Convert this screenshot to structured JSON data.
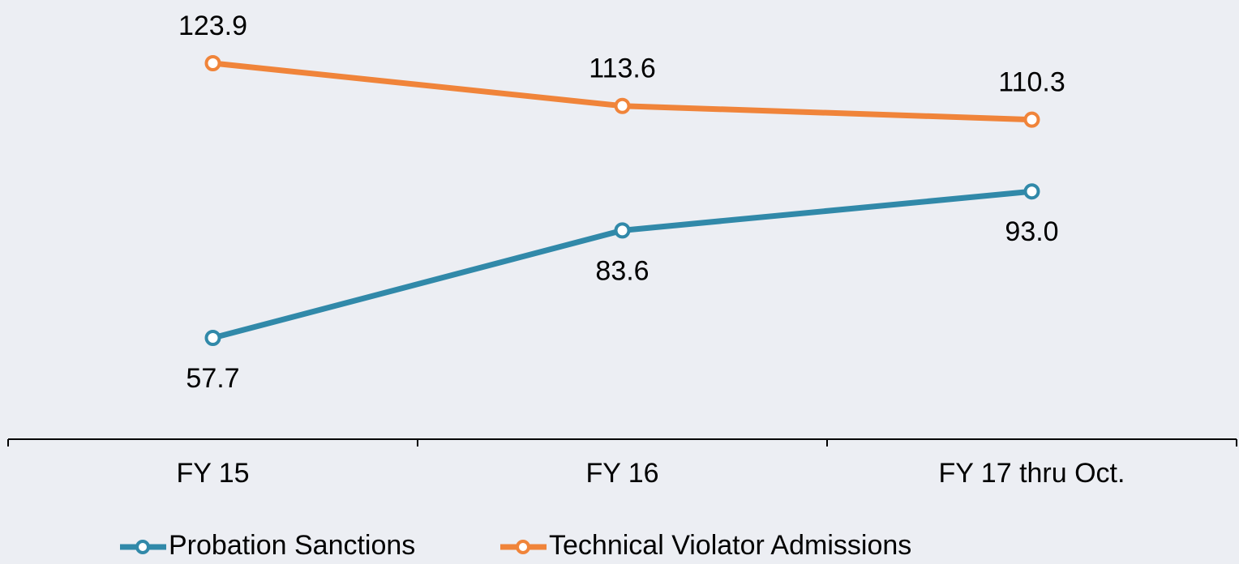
{
  "chart_data": {
    "type": "line",
    "categories": [
      "FY 15",
      "FY 16",
      "FY 17 thru Oct."
    ],
    "series": [
      {
        "name": "Probation Sanctions",
        "color": "#3189a9",
        "values": [
          57.7,
          83.6,
          93.0
        ],
        "value_labels": [
          "57.7",
          "83.6",
          "93.0"
        ]
      },
      {
        "name": "Technical Violator Admissions",
        "color": "#f0843a",
        "values": [
          123.9,
          113.6,
          110.3
        ]
      }
    ],
    "legend": "bottom"
  }
}
